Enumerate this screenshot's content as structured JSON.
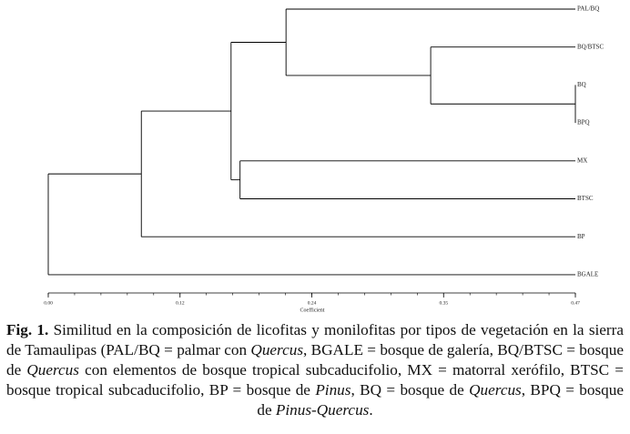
{
  "chart_data": {
    "type": "dendrogram",
    "leaves": [
      "PAL/BQ",
      "BQ/BTSC",
      "BQ",
      "BPQ",
      "MX",
      "BTSC",
      "BP",
      "BGALE"
    ],
    "merges": [
      {
        "left": 2,
        "right": 3,
        "height": 0.47
      },
      {
        "left": 1,
        "right": 8,
        "height": 0.341
      },
      {
        "left": 0,
        "right": 9,
        "height": 0.212
      },
      {
        "left": 4,
        "right": 5,
        "height": 0.171
      },
      {
        "left": 10,
        "right": 11,
        "height": 0.163
      },
      {
        "left": 12,
        "right": 6,
        "height": 0.083
      },
      {
        "left": 13,
        "right": 7,
        "height": 0
      }
    ],
    "xlabel": "Coefficient",
    "xlim": [
      0,
      0.47
    ],
    "xticks": [
      {
        "value": 0,
        "label": "0.00"
      },
      {
        "value": 0.1175,
        "label": "0.12"
      },
      {
        "value": 0.235,
        "label": "0.24"
      },
      {
        "value": 0.3525,
        "label": "0.35"
      },
      {
        "value": 0.47,
        "label": "0.47"
      }
    ],
    "color": "#000000"
  },
  "caption": [
    {
      "text": "Fig. 1.",
      "style": "bold"
    },
    {
      "text": " Similitud en la composición de licofitas y monilofitas por tipos de vegetación en la sierra de Tamaulipas (PAL/BQ = palmar con ",
      "style": "normal"
    },
    {
      "text": "Quercus",
      "style": "italic"
    },
    {
      "text": ", BGALE = bosque de galería, BQ/BTSC = bosque de ",
      "style": "normal"
    },
    {
      "text": "Quercus",
      "style": "italic"
    },
    {
      "text": " con elementos de bosque tropical subcaducifolio, MX = matorral xerófilo, BTSC = bosque tropical subcaducifolio, BP = bosque de ",
      "style": "normal"
    },
    {
      "text": "Pinus",
      "style": "italic"
    },
    {
      "text": ", BQ = bosque de ",
      "style": "normal"
    },
    {
      "text": "Quercus",
      "style": "italic"
    },
    {
      "text": ", BPQ = bosque de ",
      "style": "normal"
    },
    {
      "text": "Pinus-Quercus",
      "style": "italic"
    },
    {
      "text": ".",
      "style": "normal"
    }
  ]
}
